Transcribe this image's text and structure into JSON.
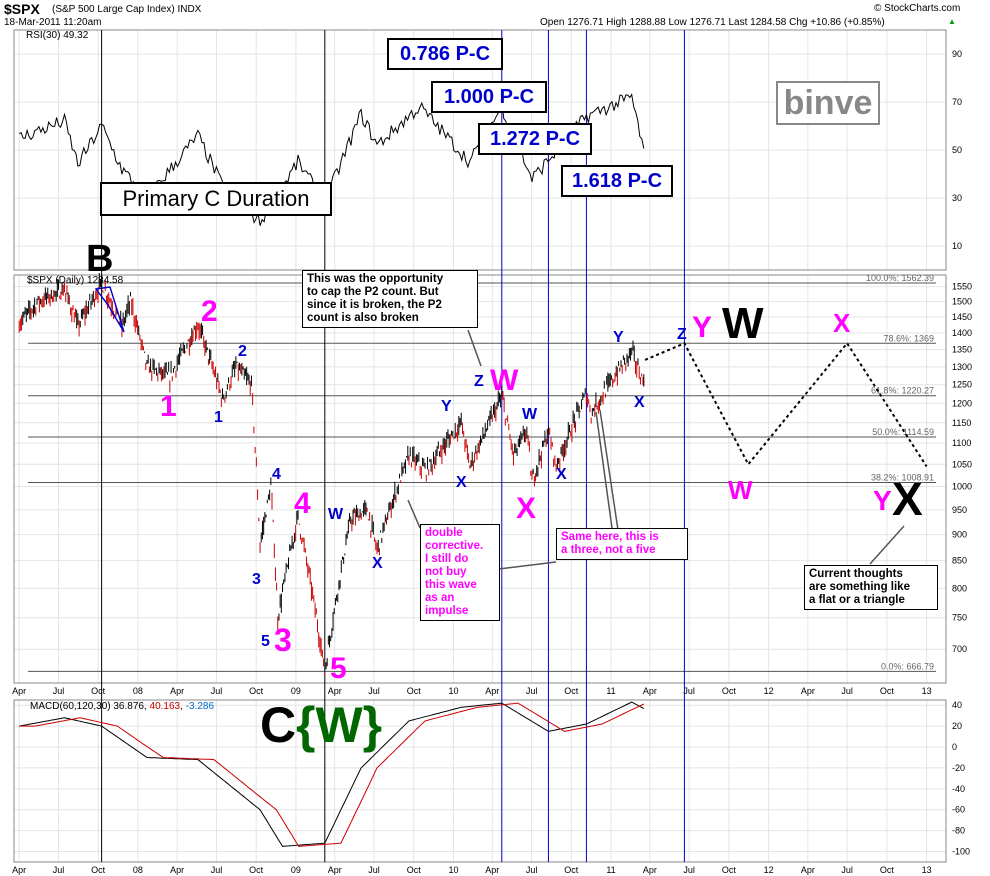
{
  "header": {
    "symbol": "$SPX",
    "name": "(S&P 500 Large Cap Index) INDX",
    "date": "18-Mar-2011 11:20am",
    "credit": "© StockCharts.com",
    "ohlc": "Open 1276.71  High 1288.88  Low 1276.71  Last 1284.58  Chg +10.86 (+0.85%)",
    "ohlc_arrow": "▲"
  },
  "rsi_panel": {
    "label": "RSI(30) 49.32",
    "ticks": [
      "90",
      "70",
      "50",
      "30",
      "10"
    ]
  },
  "price_panel": {
    "label": "$SPX (Daily) 1284.58",
    "ticks": [
      "1550",
      "1500",
      "1450",
      "1400",
      "1350",
      "1300",
      "1250",
      "1200",
      "1150",
      "1100",
      "1050",
      "1000",
      "950",
      "900",
      "850",
      "800",
      "750",
      "700"
    ]
  },
  "macd_panel": {
    "label": "MACD(60,120,30)",
    "v1": "36.876",
    "v2": "40.163",
    "v3": "-3.286",
    "ticks": [
      "40",
      "20",
      "0",
      "-20",
      "-40",
      "-60",
      "-80",
      "-100"
    ]
  },
  "x_axis_labels": [
    "Apr",
    "Jul",
    "Oct",
    "08",
    "Apr",
    "Jul",
    "Oct",
    "09",
    "Apr",
    "Jul",
    "Oct",
    "10",
    "Apr",
    "Jul",
    "Oct",
    "11",
    "Apr",
    "Jul",
    "Oct",
    "12",
    "Apr",
    "Jul",
    "Oct",
    "13"
  ],
  "fib_levels": [
    {
      "label": "100.0%: 1562.39",
      "value": 1562.39
    },
    {
      "label": "78.6%: 1369",
      "value": 1369
    },
    {
      "label": "61.8%: 1220.27",
      "value": 1220.27
    },
    {
      "label": "50.0%: 1114.59",
      "value": 1114.59
    },
    {
      "label": "38.2%: 1008.91",
      "value": 1008.91
    },
    {
      "label": "0.0%: 666.79",
      "value": 666.79
    }
  ],
  "fib_boxes": [
    "0.786 P-C",
    "1.000 P-C",
    "1.272 P-C",
    "1.618 P-C"
  ],
  "duration_box": "Primary C Duration",
  "watermark": "binve",
  "notes": {
    "n1": [
      "This was the opportunity",
      "to cap the P2 count. But",
      "since it is broken, the P2",
      "count is also broken"
    ],
    "n2": [
      "double",
      "corrective.",
      "I still do",
      "not buy",
      "this wave",
      "as an",
      "impulse"
    ],
    "n3": [
      "Same here, this is",
      "a three, not a five"
    ],
    "n4": [
      "Current thoughts",
      "are something like",
      "a flat or a triangle"
    ]
  },
  "wave_labels": {
    "B": "B",
    "p2": "2",
    "p1": "1",
    "b2": "2",
    "b1": "1",
    "b4": "4",
    "p4": "4",
    "b3": "3",
    "b5": "5",
    "p3": "3",
    "p5": "5",
    "W1": "W",
    "X1": "X",
    "C": "C",
    "W2": "{W}",
    "Y1": "Y",
    "X2": "X",
    "Z1": "Z",
    "pW": "W",
    "W3": "W",
    "pX": "X",
    "X3": "X",
    "Y2": "Y",
    "X4": "X",
    "Z2": "Z",
    "pY": "Y",
    "bigW": "W",
    "pX2": "X",
    "pW2": "W",
    "pY2": "Y",
    "bigX": "X"
  },
  "colors": {
    "magenta": "#ff00ff",
    "blue": "#0000cc",
    "green": "#006600",
    "price_up": "#000000",
    "price_down": "#cc0000",
    "grid": "#e4e4e4"
  },
  "chart_data": {
    "type": "line",
    "title": "$SPX (S&P 500 Large Cap Index) INDX",
    "series": [
      {
        "name": "$SPX (Daily) 1284.58",
        "values": [
          [
            "2007-04-01",
            1430
          ],
          [
            "2007-05-15",
            1500
          ],
          [
            "2007-07-15",
            1540
          ],
          [
            "2007-08-15",
            1420
          ],
          [
            "2007-10-09",
            1562
          ],
          [
            "2007-11-25",
            1420
          ],
          [
            "2007-12-15",
            1500
          ],
          [
            "2008-01-22",
            1300
          ],
          [
            "2008-03-15",
            1270
          ],
          [
            "2008-05-19",
            1425
          ],
          [
            "2008-07-15",
            1210
          ],
          [
            "2008-08-15",
            1300
          ],
          [
            "2008-09-20",
            1250
          ],
          [
            "2008-10-10",
            880
          ],
          [
            "2008-11-04",
            1000
          ],
          [
            "2008-11-20",
            750
          ],
          [
            "2009-01-06",
            935
          ],
          [
            "2009-03-09",
            666
          ],
          [
            "2009-05-08",
            930
          ],
          [
            "2009-06-15",
            950
          ],
          [
            "2009-07-08",
            870
          ],
          [
            "2009-09-20",
            1070
          ],
          [
            "2009-10-30",
            1035
          ],
          [
            "2010-01-19",
            1150
          ],
          [
            "2010-02-08",
            1045
          ],
          [
            "2010-04-23",
            1217
          ],
          [
            "2010-05-20",
            1070
          ],
          [
            "2010-06-20",
            1130
          ],
          [
            "2010-07-02",
            1010
          ],
          [
            "2010-08-09",
            1128
          ],
          [
            "2010-08-27",
            1045
          ],
          [
            "2010-11-05",
            1225
          ],
          [
            "2010-11-16",
            1175
          ],
          [
            "2011-02-18",
            1344
          ],
          [
            "2011-03-16",
            1256
          ],
          [
            "2011-03-18",
            1284.58
          ]
        ]
      },
      {
        "name": "RSI(30)",
        "values": [
          [
            "2007-04-01",
            55
          ],
          [
            "2007-07-15",
            62
          ],
          [
            "2007-08-15",
            44
          ],
          [
            "2007-10-09",
            60
          ],
          [
            "2007-11-25",
            42
          ],
          [
            "2008-01-22",
            30
          ],
          [
            "2008-05-19",
            56
          ],
          [
            "2008-07-15",
            35
          ],
          [
            "2008-10-10",
            20
          ],
          [
            "2009-01-06",
            45
          ],
          [
            "2009-03-09",
            28
          ],
          [
            "2009-06-01",
            65
          ],
          [
            "2009-07-08",
            52
          ],
          [
            "2009-10-15",
            68
          ],
          [
            "2010-02-08",
            45
          ],
          [
            "2010-04-23",
            68
          ],
          [
            "2010-07-02",
            38
          ],
          [
            "2010-11-05",
            64
          ],
          [
            "2011-02-18",
            72
          ],
          [
            "2011-03-18",
            49.32
          ]
        ]
      },
      {
        "name": "MACD(60,120,30)",
        "values": [
          [
            "2007-04-01",
            20
          ],
          [
            "2007-07-15",
            28
          ],
          [
            "2007-10-09",
            20
          ],
          [
            "2008-01-22",
            -10
          ],
          [
            "2008-05-19",
            -12
          ],
          [
            "2008-10-10",
            -60
          ],
          [
            "2008-12-01",
            -95
          ],
          [
            "2009-03-09",
            -92
          ],
          [
            "2009-06-01",
            -20
          ],
          [
            "2009-09-20",
            25
          ],
          [
            "2010-01-19",
            38
          ],
          [
            "2010-04-23",
            42
          ],
          [
            "2010-08-09",
            15
          ],
          [
            "2010-11-05",
            22
          ],
          [
            "2011-02-18",
            43
          ],
          [
            "2011-03-18",
            36.876
          ]
        ]
      },
      {
        "name": "Projection",
        "values": [
          [
            "2011-03-21",
            1320
          ],
          [
            "2011-06-20",
            1369
          ],
          [
            "2011-11-15",
            1050
          ],
          [
            "2012-07-01",
            1369
          ],
          [
            "2013-01-01",
            1045
          ]
        ]
      }
    ],
    "xlabel": "",
    "ylabel": "",
    "x_range": [
      "2007-03-20",
      "2013-02-15"
    ],
    "ylim": [
      650,
      1590
    ],
    "y_scale": "log",
    "rsi_ylim": [
      0,
      100
    ],
    "macd_ylim": [
      -110,
      45
    ],
    "vertical_markers": [
      "2007-10-09",
      "2009-03-09",
      "2010-04-23",
      "2010-08-09",
      "2010-11-05",
      "2011-06-20"
    ],
    "grid": true,
    "legend": "top-left"
  }
}
